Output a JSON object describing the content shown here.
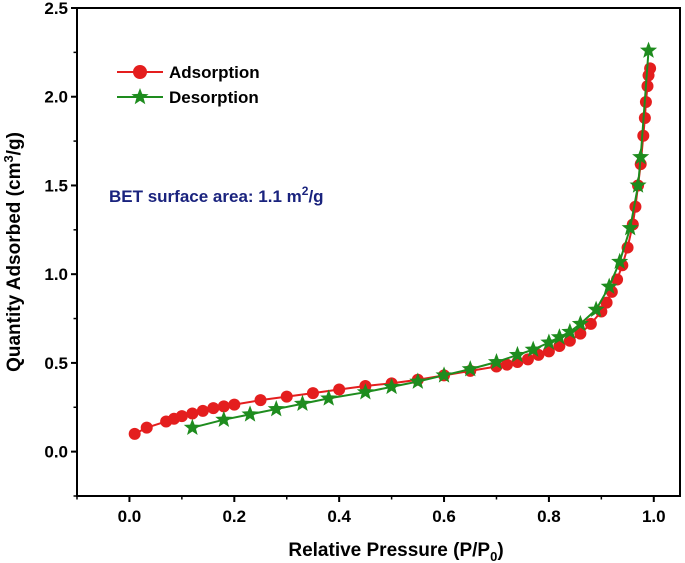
{
  "chart_data": {
    "type": "line",
    "title": "",
    "xlabel": "Relative Pressure (P/P",
    "xlabel_sub": "0",
    "xlabel_end": ")",
    "ylabel": "Quantity Adsorbed (cm",
    "ylabel_sup": "3",
    "ylabel_end": "/g)",
    "xlim": [
      -0.1,
      1.05
    ],
    "ylim": [
      -0.25,
      2.5
    ],
    "xticks": [
      0.0,
      0.2,
      0.4,
      0.6,
      0.8,
      1.0
    ],
    "xtick_labels": [
      "0.0",
      "0.2",
      "0.4",
      "0.6",
      "0.8",
      "1.0"
    ],
    "yticks": [
      0.0,
      0.5,
      1.0,
      1.5,
      2.0,
      2.5
    ],
    "ytick_labels": [
      "0.0",
      "0.5",
      "1.0",
      "1.5",
      "2.0",
      "2.5"
    ],
    "grid": false,
    "legend_position": "top-left",
    "annotation": {
      "text": "BET surface area: 1.1 m",
      "sup": "2",
      "end": "/g",
      "color": "#1a237e"
    },
    "series": [
      {
        "name": "Adsorption",
        "color": "#e41e1e",
        "marker": "circle",
        "x": [
          0.01,
          0.033,
          0.07,
          0.085,
          0.1,
          0.12,
          0.14,
          0.16,
          0.18,
          0.2,
          0.25,
          0.3,
          0.35,
          0.4,
          0.45,
          0.5,
          0.55,
          0.6,
          0.65,
          0.7,
          0.72,
          0.74,
          0.76,
          0.78,
          0.8,
          0.82,
          0.84,
          0.86,
          0.88,
          0.9,
          0.91,
          0.92,
          0.93,
          0.94,
          0.95,
          0.96,
          0.965,
          0.97,
          0.975,
          0.98,
          0.983,
          0.985,
          0.988,
          0.99,
          0.993
        ],
        "y": [
          0.1,
          0.135,
          0.17,
          0.185,
          0.2,
          0.215,
          0.23,
          0.245,
          0.255,
          0.265,
          0.29,
          0.31,
          0.33,
          0.35,
          0.37,
          0.385,
          0.405,
          0.43,
          0.455,
          0.48,
          0.49,
          0.505,
          0.52,
          0.545,
          0.565,
          0.595,
          0.625,
          0.665,
          0.72,
          0.79,
          0.84,
          0.9,
          0.97,
          1.05,
          1.15,
          1.28,
          1.38,
          1.5,
          1.62,
          1.78,
          1.88,
          1.97,
          2.06,
          2.12,
          2.16
        ]
      },
      {
        "name": "Desorption",
        "color": "#1e8c1e",
        "marker": "star",
        "x": [
          0.12,
          0.18,
          0.23,
          0.28,
          0.33,
          0.38,
          0.45,
          0.5,
          0.55,
          0.6,
          0.65,
          0.7,
          0.74,
          0.77,
          0.8,
          0.82,
          0.84,
          0.86,
          0.89,
          0.915,
          0.935,
          0.955,
          0.97,
          0.975,
          0.99
        ],
        "y": [
          0.135,
          0.18,
          0.21,
          0.24,
          0.27,
          0.3,
          0.335,
          0.365,
          0.395,
          0.43,
          0.465,
          0.505,
          0.545,
          0.575,
          0.615,
          0.645,
          0.675,
          0.72,
          0.8,
          0.93,
          1.07,
          1.26,
          1.5,
          1.66,
          2.26
        ]
      }
    ]
  }
}
